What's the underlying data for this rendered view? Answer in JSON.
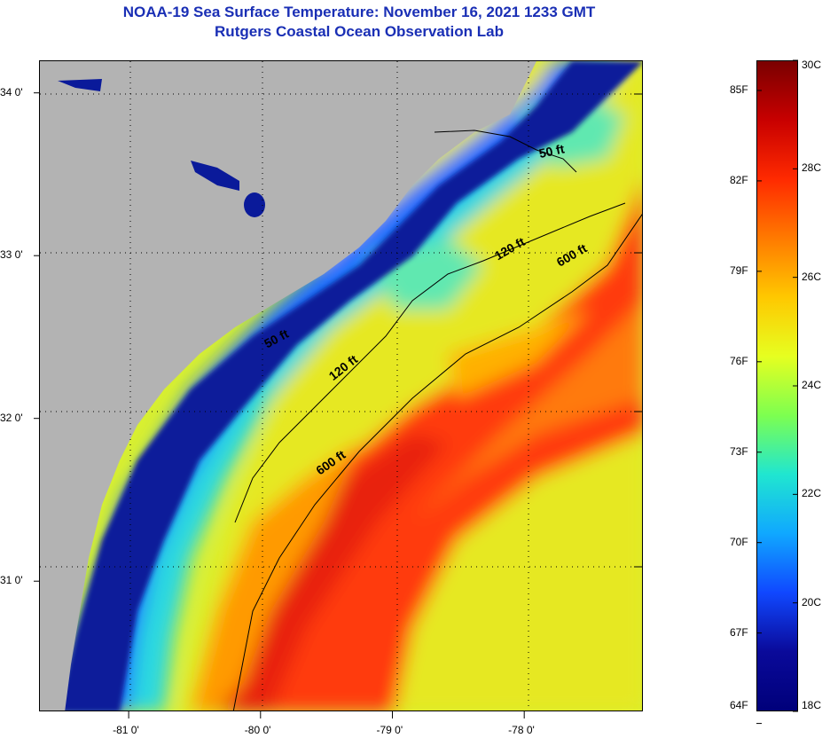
{
  "title": {
    "line1": "NOAA-19 Sea Surface Temperature:  November 16, 2021 1233 GMT",
    "line2": "Rutgers Coastal Ocean Observation Lab"
  },
  "map": {
    "lon_range": [
      -81.68,
      -77.1
    ],
    "lat_range": [
      30.2,
      34.2
    ],
    "lon_ticks": [
      {
        "value": -81,
        "label": "-81 0'"
      },
      {
        "value": -80,
        "label": "-80 0'"
      },
      {
        "value": -79,
        "label": "-79 0'"
      },
      {
        "value": -78,
        "label": "-78 0'"
      }
    ],
    "lat_ticks": [
      {
        "value": 34,
        "label": "34 0'"
      },
      {
        "value": 33,
        "label": "33 0'"
      },
      {
        "value": 32,
        "label": "32 0'"
      },
      {
        "value": 31,
        "label": "31 0'"
      }
    ],
    "isobath_labels": [
      {
        "text": "50 ft",
        "lon": -77.88,
        "lat": 33.6
      },
      {
        "text": "50 ft",
        "lon": -79.95,
        "lat": 32.43
      },
      {
        "text": "120 ft",
        "lon": -78.2,
        "lat": 32.97
      },
      {
        "text": "120 ft",
        "lon": -79.45,
        "lat": 32.23
      },
      {
        "text": "600 ft",
        "lon": -77.73,
        "lat": 32.93
      },
      {
        "text": "600 ft",
        "lon": -79.55,
        "lat": 31.65
      }
    ],
    "colors": {
      "land": "#b3b3b3",
      "cold": "#0a1a9a",
      "warm": "#e83010",
      "frame": "#000000"
    }
  },
  "colorbar": {
    "celsius_labels": [
      "30C",
      "28C",
      "26C",
      "24C",
      "22C",
      "20C",
      "18C"
    ],
    "fahrenheit_labels": [
      "85F",
      "82F",
      "79F",
      "76F",
      "73F",
      "70F",
      "67F",
      "64F"
    ],
    "range_c": [
      18,
      30
    ],
    "stops": [
      "#7a0000",
      "#c80000",
      "#ff2a00",
      "#ff7a00",
      "#ffc800",
      "#e6ff20",
      "#7dff50",
      "#20e6d0",
      "#10a8ff",
      "#1048ff",
      "#0a0a9a",
      "#00007a"
    ]
  }
}
